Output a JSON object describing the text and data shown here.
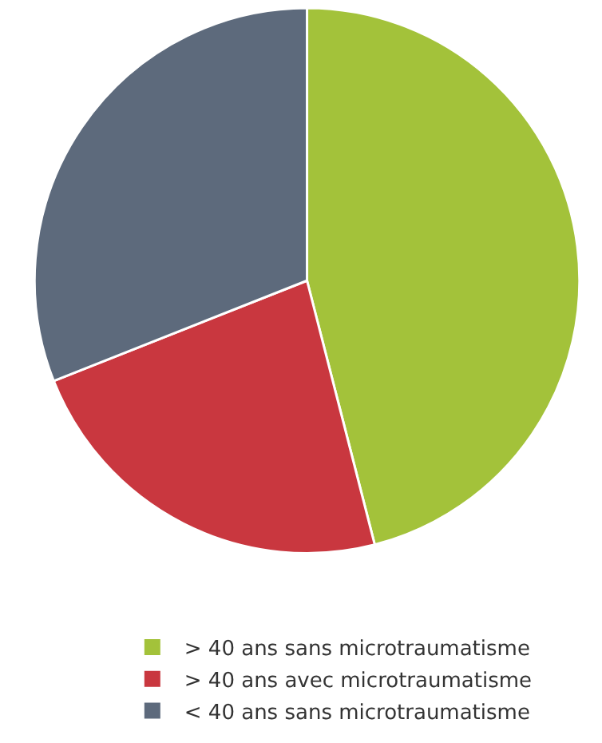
{
  "chart_data": {
    "type": "pie",
    "categories": [
      "> 40 ans sans microtraumatisme",
      "> 40 ans avec microtraumatisme",
      "< 40 ans sans microtraumatisme"
    ],
    "values": [
      46,
      23,
      31
    ],
    "colors": [
      "#a3c23a",
      "#c9373f",
      "#5d6a7c"
    ],
    "legend": "bottom"
  }
}
